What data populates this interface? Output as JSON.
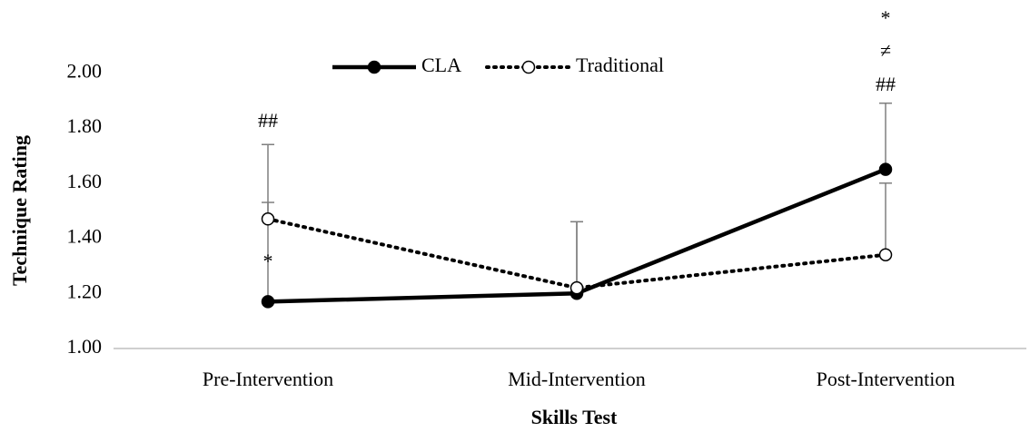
{
  "chart_data": {
    "type": "line",
    "x_label": "Skills Test",
    "y_label": "Technique Rating",
    "categories": [
      "Pre-Intervention",
      "Mid-Intervention",
      "Post-Intervention"
    ],
    "series": [
      {
        "name": "CLA",
        "color": "#000000",
        "line_style": "solid",
        "marker": "filled",
        "values": [
          1.17,
          1.2,
          1.65
        ],
        "errors": [
          0.36,
          0.26,
          0.24
        ]
      },
      {
        "name": "Traditional",
        "color": "#000000",
        "line_style": "dotted",
        "marker": "open",
        "values": [
          1.47,
          1.22,
          1.34
        ],
        "errors": [
          0.27,
          0.24,
          0.26
        ]
      }
    ],
    "error_bar_color": "#7f7f7f",
    "ylim": [
      1.0,
      2.08
    ],
    "yticks": [
      {
        "value": 1.0,
        "label": "1.00"
      },
      {
        "value": 1.2,
        "label": "1.20"
      },
      {
        "value": 1.4,
        "label": "1.40"
      },
      {
        "value": 1.6,
        "label": "1.60"
      },
      {
        "value": 1.8,
        "label": "1.80"
      },
      {
        "value": 2.0,
        "label": "2.00"
      }
    ],
    "grid": false,
    "legend": "top",
    "annotations": [
      "##",
      "*",
      "*",
      "≠",
      "##"
    ]
  }
}
